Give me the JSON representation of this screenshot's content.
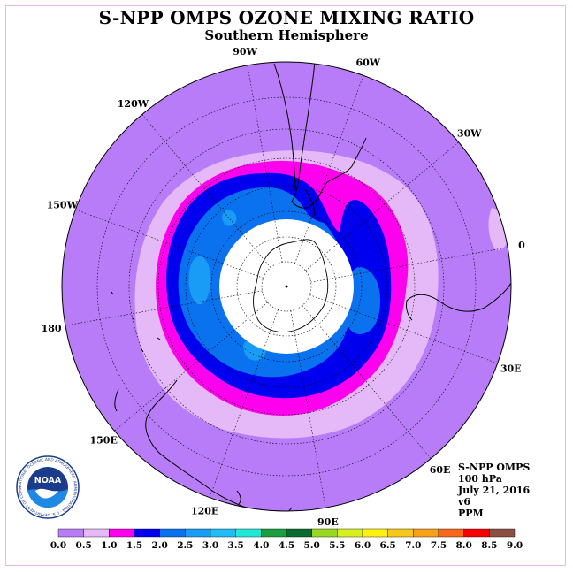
{
  "header": {
    "title": "S-NPP OMPS OZONE MIXING RATIO",
    "subtitle": "Southern Hemisphere"
  },
  "map": {
    "projection": "south polar stereographic",
    "longitude_labels": [
      {
        "text": "0",
        "lon": 0
      },
      {
        "text": "30E",
        "lon": 30
      },
      {
        "text": "60E",
        "lon": 60
      },
      {
        "text": "90E",
        "lon": 90
      },
      {
        "text": "120E",
        "lon": 120
      },
      {
        "text": "150E",
        "lon": 150
      },
      {
        "text": "180",
        "lon": 180
      },
      {
        "text": "150W",
        "lon": -150
      },
      {
        "text": "120W",
        "lon": -120
      },
      {
        "text": "90W",
        "lon": -90
      },
      {
        "text": "60W",
        "lon": -60
      },
      {
        "text": "30W",
        "lon": -30
      }
    ],
    "no_data_region": "polar night",
    "colors": {
      "background_level": "#b87cf8",
      "band_0_5": "#e5b9f8",
      "band_1_0": "#ff00ee",
      "band_1_5": "#0000ee",
      "band_2_0": "#0a72ee",
      "band_2_5": "#189cf6",
      "land_outline": "#000000",
      "grid": "#000000"
    }
  },
  "info_box": {
    "lines": [
      "S-NPP OMPS",
      "100 hPa",
      "July 21, 2016",
      "v6",
      "PPM"
    ]
  },
  "colorbar": {
    "labels": [
      "0.0",
      "0.5",
      "1.0",
      "1.5",
      "2.0",
      "2.5",
      "3.0",
      "3.5",
      "4.0",
      "4.5",
      "5.0",
      "5.5",
      "6.0",
      "6.5",
      "7.0",
      "7.5",
      "8.0",
      "8.5",
      "9.0"
    ],
    "colors": [
      "#b87cf8",
      "#e5b9f8",
      "#ff00ee",
      "#0000ee",
      "#0a72ee",
      "#189cf6",
      "#20bcf6",
      "#20e8d8",
      "#18a040",
      "#0a6a30",
      "#98d820",
      "#d8f020",
      "#fff010",
      "#f8c818",
      "#f8a018",
      "#f86818",
      "#f80000",
      "#8a5040"
    ]
  },
  "logo": {
    "text": "NOAA",
    "ring_text": "NATIONAL OCEANIC AND ATMOSPHERIC ADMINISTRATION · U.S. DEPARTMENT OF COMMERCE"
  }
}
